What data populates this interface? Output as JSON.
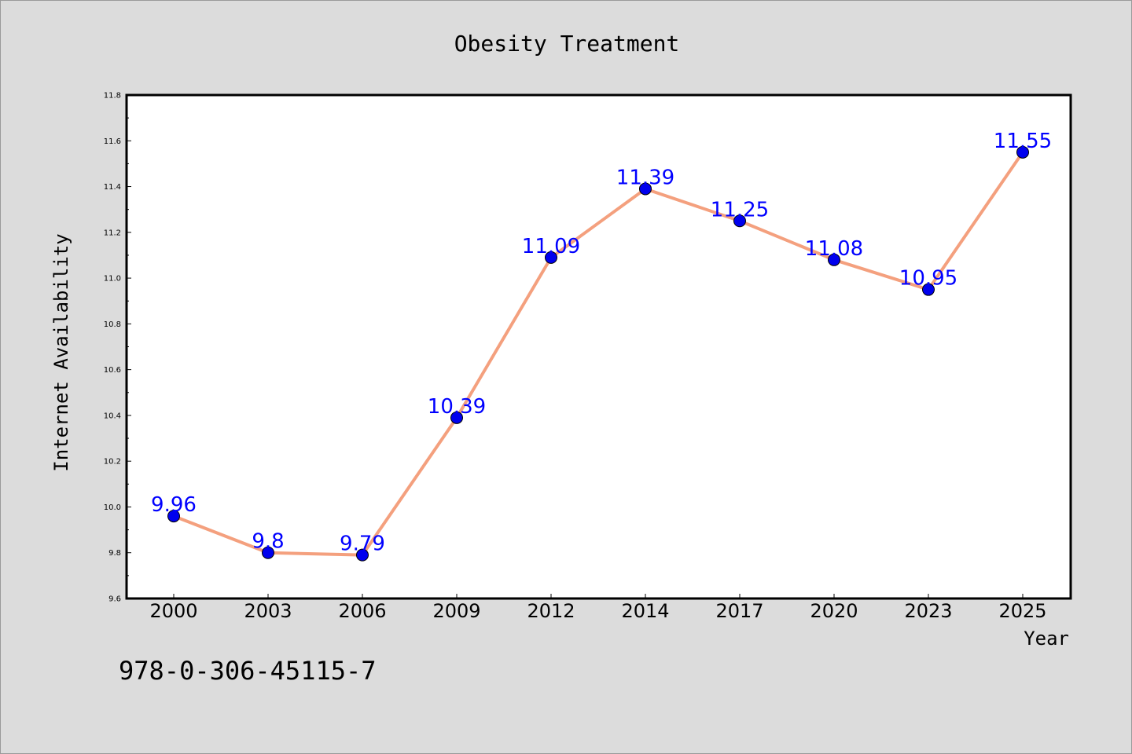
{
  "chart_data": {
    "type": "line",
    "title": "Obesity Treatment",
    "xlabel": "Year",
    "ylabel": "Internet Availability",
    "categories": [
      "2000",
      "2003",
      "2006",
      "2009",
      "2012",
      "2014",
      "2017",
      "2020",
      "2023",
      "2025"
    ],
    "series": [
      {
        "values": [
          9.96,
          9.8,
          9.79,
          10.39,
          11.09,
          11.39,
          11.25,
          11.08,
          10.95,
          11.55
        ]
      }
    ],
    "data_labels": [
      "9.96",
      "9.8",
      "9.79",
      "10.39",
      "11.09",
      "11.39",
      "11.25",
      "11.08",
      "10.95",
      "11.55"
    ],
    "ylim": [
      9.6,
      11.8
    ],
    "yticks": [
      "9.6",
      "9.8",
      "10.0",
      "10.2",
      "10.4",
      "10.6",
      "10.8",
      "11.0",
      "11.2",
      "11.4",
      "11.6",
      "11.8"
    ],
    "grid": false,
    "colors": {
      "line": "#f4a07e",
      "marker": "#0000ee",
      "data_label": "#0000ff",
      "background": "#dcdcdc",
      "plot_background": "#ffffff"
    }
  },
  "footnote": "978-0-306-45115-7"
}
